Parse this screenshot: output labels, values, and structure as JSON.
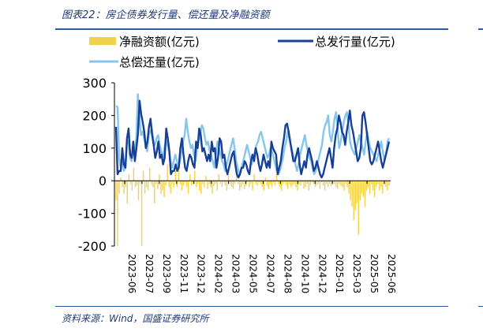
{
  "title": "图表22：房企债券发行量、偿还量及净融资额",
  "source": "资料来源：Wind，国盛证券研究所",
  "colors": {
    "net_financing": "#f2d24c",
    "issuance": "#163f96",
    "repayment": "#86c6ea",
    "rule": "#2a5aa8"
  },
  "chart_data": {
    "type": "bar+line",
    "title": "",
    "xlabel": "",
    "ylabel": "",
    "ylim": [
      -200,
      300
    ],
    "yticks": [
      "300",
      "200",
      "100",
      "0",
      "-100",
      "-200"
    ],
    "grid": false,
    "legend_position": "top",
    "x_tick_labels": [
      "2023-06",
      "2023-07",
      "2023-09",
      "2023-11",
      "2023-12",
      "2024-02",
      "2024-03",
      "2024-05",
      "2024-07",
      "2024-08",
      "2024-10",
      "2024-12",
      "2025-01",
      "2025-03",
      "2025-05",
      "2025-06"
    ],
    "series": [
      {
        "name": "净融资额(亿元)",
        "kind": "bar",
        "values": [
          -60,
          -200,
          -40,
          10,
          -20,
          -40,
          -20,
          -70,
          20,
          -10,
          -30,
          40,
          -20,
          -15,
          -60,
          -10,
          -200,
          30,
          -40,
          -20,
          -30,
          40,
          -10,
          -20,
          -70,
          -10,
          -25,
          20,
          -40,
          -30,
          -50,
          -15,
          50,
          -20,
          -40,
          -10,
          -20,
          30,
          -20,
          40,
          -10,
          -30,
          -15,
          -5,
          -20,
          -40,
          20,
          -15,
          -10,
          30,
          -20,
          -10,
          -30,
          -40,
          -10,
          -20,
          15,
          -25,
          -10,
          -20,
          -40,
          -15,
          -10,
          -30,
          20,
          -10,
          -20,
          -5,
          -15,
          -30,
          20,
          -10,
          -20,
          -25,
          -10,
          15,
          -10,
          -30,
          -20,
          -10,
          -25,
          -15,
          -5,
          -20,
          -10,
          -30,
          20,
          -10,
          -15,
          -5,
          -10,
          -20,
          -30,
          10,
          -15,
          -25,
          -10,
          -20,
          -5,
          -15,
          20,
          -10,
          -20,
          -30,
          -10,
          -5,
          -15,
          -25,
          -10,
          -20,
          -15,
          -10,
          -20,
          -30,
          -10,
          -15,
          -5,
          -25,
          -20,
          -10,
          -30,
          -15,
          -5,
          -10,
          -20,
          -15,
          -10,
          -25,
          -5,
          -15,
          -30,
          -10,
          -20,
          -10,
          -15,
          -5,
          -10,
          -20,
          -25,
          -10,
          -15,
          -20,
          -30,
          -10,
          -20,
          -40,
          -60,
          -80,
          -120,
          -90,
          -70,
          -165,
          -60,
          -40,
          -50,
          -80,
          -30,
          -20,
          -40,
          -10,
          -30,
          -50,
          -20,
          -10,
          -30,
          -20,
          -40,
          -10,
          -20,
          -30,
          -15
        ]
      },
      {
        "name": "总发行量(亿元)",
        "kind": "line",
        "values": [
          165,
          20,
          30,
          30,
          100,
          50,
          40,
          130,
          160,
          80,
          70,
          120,
          60,
          100,
          145,
          245,
          205,
          180,
          150,
          100,
          120,
          165,
          190,
          140,
          110,
          70,
          90,
          120,
          70,
          80,
          50,
          70,
          160,
          130,
          90,
          20,
          30,
          30,
          50,
          30,
          40,
          100,
          130,
          80,
          40,
          30,
          60,
          80,
          70,
          50,
          40,
          120,
          100,
          160,
          140,
          90,
          100,
          80,
          60,
          80,
          60,
          120,
          90,
          100,
          40,
          70,
          130,
          120,
          70,
          80,
          40,
          20,
          40,
          60,
          80,
          90,
          50,
          20,
          10,
          20,
          40,
          40,
          60,
          50,
          30,
          20,
          60,
          80,
          60,
          100,
          80,
          50,
          30,
          50,
          80,
          60,
          40,
          60,
          40,
          120,
          100,
          90,
          80,
          20,
          40,
          60,
          100,
          130,
          170,
          175,
          150,
          120,
          90,
          60,
          60,
          80,
          100,
          50,
          20,
          40,
          60,
          40,
          80,
          100,
          80,
          60,
          30,
          40,
          60,
          40,
          20,
          10,
          20,
          40,
          60,
          80,
          100,
          70,
          40,
          100,
          140,
          160,
          200,
          180,
          150,
          140,
          110,
          150,
          180,
          215,
          170,
          150,
          120,
          90,
          60,
          70,
          100,
          200,
          210,
          180,
          140,
          100,
          60,
          50,
          60,
          80,
          100,
          120,
          90,
          60,
          40,
          60,
          80,
          100,
          120
        ]
      },
      {
        "name": "总偿还量(亿元)",
        "kind": "line",
        "values": [
          230,
          225,
          70,
          40,
          60,
          30,
          40,
          120,
          120,
          70,
          60,
          100,
          90,
          130,
          265,
          200,
          140,
          150,
          130,
          110,
          90,
          140,
          150,
          160,
          120,
          110,
          130,
          140,
          110,
          90,
          70,
          100,
          125,
          110,
          90,
          60,
          40,
          60,
          80,
          60,
          40,
          60,
          90,
          120,
          140,
          190,
          150,
          120,
          100,
          110,
          80,
          60,
          100,
          120,
          140,
          170,
          160,
          130,
          110,
          120,
          90,
          80,
          60,
          40,
          80,
          120,
          100,
          80,
          60,
          50,
          30,
          50,
          70,
          90,
          110,
          130,
          100,
          60,
          40,
          20,
          30,
          50,
          70,
          90,
          110,
          90,
          70,
          50,
          70,
          90,
          110,
          120,
          140,
          150,
          130,
          110,
          90,
          70,
          80,
          100,
          90,
          70,
          50,
          30,
          20,
          30,
          50,
          70,
          100,
          120,
          150,
          130,
          110,
          90,
          70,
          50,
          30,
          50,
          80,
          100,
          120,
          140,
          110,
          90,
          70,
          60,
          40,
          20,
          30,
          50,
          70,
          90,
          110,
          150,
          170,
          180,
          200,
          140,
          120,
          150,
          190,
          210,
          160,
          100,
          120,
          150,
          180,
          200,
          210,
          170,
          120,
          100,
          90,
          80,
          100,
          120,
          140,
          120,
          100,
          80,
          120,
          150,
          120,
          100,
          90,
          80,
          70,
          60,
          80,
          100,
          120,
          90,
          60,
          80,
          120,
          130
        ]
      }
    ]
  }
}
